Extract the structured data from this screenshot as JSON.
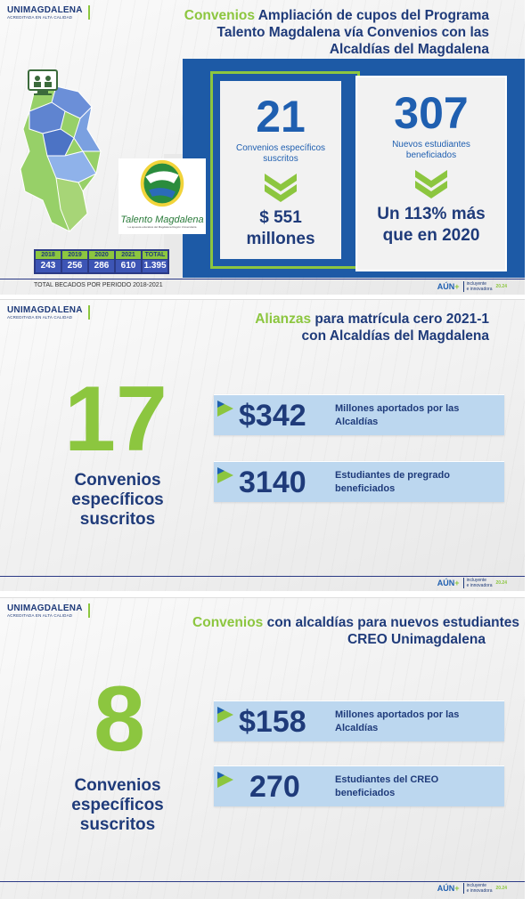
{
  "brand": {
    "name": "UNIMAGDALENA",
    "tagline": "ACREDITADA EN ALTA CALIDAD"
  },
  "footer": {
    "aun": "AÚN",
    "plus": "+",
    "tag1": "incluyente",
    "tag2": "e innovadora",
    "year_label": "20.24"
  },
  "slide1": {
    "title_highlight": "Convenios",
    "title_line1": " Ampliación de cupos del Programa",
    "title_line2": "Talento Magdalena vía Convenios con las",
    "title_line3": "Alcaldías del Magdalena",
    "card1": {
      "number": "21",
      "label_line1": "Convenios específicos",
      "label_line2": "suscritos",
      "amount_line1": "$ 551",
      "amount_line2": "millones"
    },
    "card2": {
      "number": "307",
      "label_line1": "Nuevos estudiantes",
      "label_line2": "beneficiados",
      "note_line1": "Un 113% más",
      "note_line2": "que en 2020"
    },
    "logo_text": "Talento Magdalena",
    "logo_sub": "La apuesta educativa del Magdalena Región Universitaria",
    "years": [
      {
        "year": "2018",
        "value": "243"
      },
      {
        "year": "2019",
        "value": "256"
      },
      {
        "year": "2020",
        "value": "286"
      },
      {
        "year": "2021",
        "value": "610"
      },
      {
        "year": "TOTAL",
        "value": "1.395"
      }
    ],
    "total_caption": "TOTAL BECADOS POR PERIODO 2018-2021"
  },
  "slide2": {
    "title_highlight": "Alianzas",
    "title_line1": " para matrícula cero 2021-1",
    "title_line2": "con Alcaldías del Magdalena",
    "big_number": "17",
    "conv_line1": "Convenios",
    "conv_line2": "específicos",
    "conv_line3": "suscritos",
    "bar1": {
      "value": "$342",
      "desc_line1": "Millones aportados por las",
      "desc_line2": "Alcaldías"
    },
    "bar2": {
      "value": "3140",
      "desc_line1": "Estudiantes de pregrado",
      "desc_line2": "beneficiados"
    }
  },
  "slide3": {
    "title_highlight": "Convenios",
    "title_line1": " con alcaldías para nuevos estudiantes",
    "title_line2": "CREO Unimagdalena",
    "big_number": "8",
    "conv_line1": "Convenios",
    "conv_line2": "específicos",
    "conv_line3": "suscritos",
    "bar1": {
      "value": "$158",
      "desc_line1": "Millones aportados por las",
      "desc_line2": "Alcaldías"
    },
    "bar2": {
      "value": "270",
      "desc_line1": "Estudiantes del CREO",
      "desc_line2": "beneficiados"
    }
  },
  "colors": {
    "green": "#8cc63f",
    "navy": "#1f3b7a",
    "blue": "#1d5aa6",
    "lightblue": "#bcd7ef"
  }
}
